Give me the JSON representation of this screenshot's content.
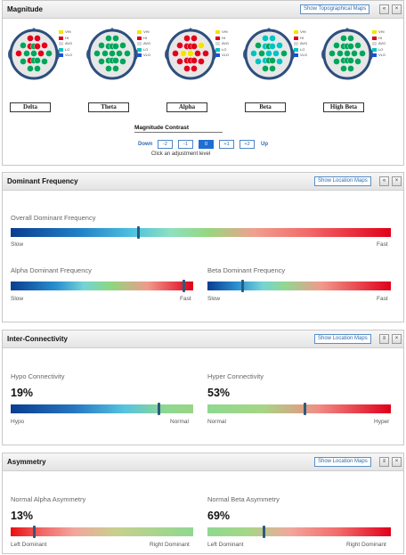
{
  "magnitude": {
    "title": "Magnitude",
    "show_maps_label": "Show Topographical Maps",
    "collapse_label": "«",
    "close_label": "×",
    "legend": [
      {
        "label": "VHI",
        "color": "#f5e400"
      },
      {
        "label": "HI",
        "color": "#e3001b"
      },
      {
        "label": "AVG",
        "color": "#d8d8d8"
      },
      {
        "label": "LO",
        "color": "#00c3c3"
      },
      {
        "label": "VLO",
        "color": "#1a4fd6"
      }
    ],
    "bands": [
      {
        "label": "Delta",
        "electrode_colors": [
          "#e3001b",
          "#e3001b",
          "#00a65a",
          "#e3001b",
          "#00a65a",
          "#e3001b",
          "#e3001b",
          "#e3001b",
          "#00a65a",
          "#00a65a",
          "#e3001b",
          "#00a65a",
          "#00a65a",
          "#e3001b",
          "#00a65a",
          "#00a65a",
          "#00a65a",
          "#00a65a",
          "#00a65a"
        ]
      },
      {
        "label": "Theta",
        "electrode_colors": [
          "#00a65a",
          "#00a65a",
          "#00a65a",
          "#00a65a",
          "#00a65a",
          "#00a65a",
          "#00a65a",
          "#00a65a",
          "#00a65a",
          "#00a65a",
          "#00a65a",
          "#00a65a",
          "#00a65a",
          "#00a65a",
          "#00a65a",
          "#00a65a",
          "#00a65a",
          "#00a65a",
          "#00a65a"
        ]
      },
      {
        "label": "Alpha",
        "electrode_colors": [
          "#e3001b",
          "#e3001b",
          "#e3001b",
          "#e3001b",
          "#e3001b",
          "#e3001b",
          "#f5e400",
          "#e3001b",
          "#f5e400",
          "#f5e400",
          "#e3001b",
          "#e3001b",
          "#e3001b",
          "#e3001b",
          "#e3001b",
          "#e3001b",
          "#e3001b",
          "#e3001b",
          "#e3001b"
        ]
      },
      {
        "label": "Beta",
        "electrode_colors": [
          "#00c3c3",
          "#00c3c3",
          "#00a65a",
          "#00c3c3",
          "#00a65a",
          "#00c3c3",
          "#00c3c3",
          "#00c3c3",
          "#00a65a",
          "#00c3c3",
          "#00c3c3",
          "#00a65a",
          "#00c3c3",
          "#00c3c3",
          "#00a65a",
          "#00a65a",
          "#00c3c3",
          "#00a65a",
          "#00a65a"
        ]
      },
      {
        "label": "High Beta",
        "electrode_colors": [
          "#00a65a",
          "#00a65a",
          "#00a65a",
          "#00a65a",
          "#00a65a",
          "#00a65a",
          "#00a65a",
          "#00a65a",
          "#00a65a",
          "#00a65a",
          "#00a65a",
          "#00a65a",
          "#00a65a",
          "#00a65a",
          "#00a65a",
          "#00a65a",
          "#00a65a",
          "#00a65a",
          "#00a65a"
        ]
      }
    ],
    "contrast": {
      "title": "Magnitude Contrast",
      "down_label": "Down",
      "up_label": "Up",
      "levels": [
        "-2",
        "-1",
        "0",
        "+1",
        "+2"
      ],
      "selected": "0",
      "hint": "Click an adjustment level"
    }
  },
  "dominant_frequency": {
    "title": "Dominant Frequency",
    "show_maps_label": "Show Location Maps",
    "collapse_label": "«",
    "close_label": "×",
    "overall": {
      "label": "Overall Dominant Frequency",
      "left": "Slow",
      "right": "Fast",
      "marker_pct": 33.5
    },
    "alpha": {
      "label": "Alpha Dominant Frequency",
      "left": "Slow",
      "right": "Fast",
      "marker_pct": 95
    },
    "beta": {
      "label": "Beta Dominant Frequency",
      "left": "Slow",
      "right": "Fast",
      "marker_pct": 19
    }
  },
  "inter_connectivity": {
    "title": "Inter-Connectivity",
    "show_maps_label": "Show Location Maps",
    "collapse_label": "≡",
    "close_label": "×",
    "hypo": {
      "label": "Hypo Connectivity",
      "value": "19%",
      "left": "Hypo",
      "right": "Normal",
      "marker_pct": 81
    },
    "hyper": {
      "label": "Hyper Connectivity",
      "value": "53%",
      "left": "Normal",
      "right": "Hyper",
      "marker_pct": 53
    }
  },
  "asymmetry": {
    "title": "Asymmetry",
    "show_maps_label": "Show Location Maps",
    "collapse_label": "≡",
    "close_label": "×",
    "alpha": {
      "label": "Normal Alpha Asymmetry",
      "value": "13%",
      "left": "Left Dominant",
      "right": "Right Dominant",
      "marker_pct": 13
    },
    "beta": {
      "label": "Normal Beta Asymmetry",
      "value": "69%",
      "left": "Left Dominant",
      "right": "Right Dominant",
      "marker_pct": 31
    }
  }
}
